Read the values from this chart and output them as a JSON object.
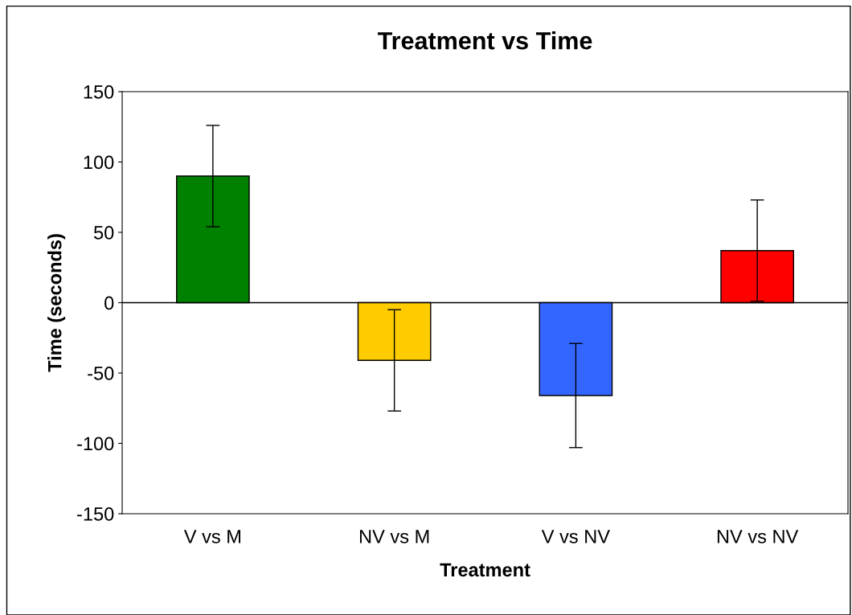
{
  "chart_data": {
    "type": "bar",
    "title": "Treatment vs Time",
    "xlabel": "Treatment",
    "ylabel": "Time (seconds)",
    "categories": [
      "V vs M",
      "NV vs M",
      "V vs NV",
      "NV vs NV"
    ],
    "values": [
      90,
      -41,
      -66,
      37
    ],
    "errors": [
      36,
      36,
      37,
      36
    ],
    "colors": [
      "#008000",
      "#ffcc00",
      "#3366ff",
      "#ff0000"
    ],
    "ylim": [
      -150,
      150
    ],
    "yticks": [
      -150,
      -100,
      -50,
      0,
      50,
      100,
      150
    ],
    "ref_lines": [
      {
        "axis": "y",
        "value": 0,
        "color": "#000000"
      }
    ],
    "grid": false,
    "legend": false
  }
}
